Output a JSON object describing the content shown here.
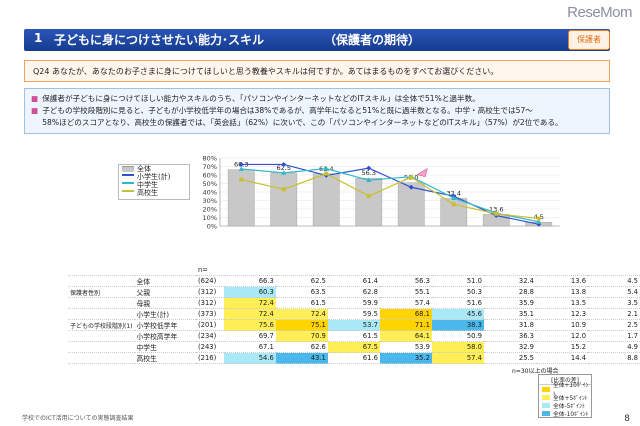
{
  "brand": "ReseMom",
  "title": {
    "num": "1",
    "text": "子どもに身につけさせたい能力･スキル",
    "sub": "（保護者の期待）",
    "badge": "保護者"
  },
  "question": "Q24  あなたが、あなたのお子さまに身につけてほしいと思う教養やスキルは何ですか。あてはまるものをすべてお選びください。",
  "summary": [
    "保護者が子どもに身につけてほしい能力やスキルのうち、「パソコンやインターネットなどのITスキル」は全体で51%と過半数。",
    "子どもの学校段階別に見ると、子どもが小学校低学年の場合は38%であるが、高学年になると51%と既に過半数となる。中学・高校生では57～",
    "58%ほどのスコアとなり、高校生の保護者では、「英会話」（62%）に次いで、この「パソコンやインターネットなどのITスキル」（57%）が2位である。"
  ],
  "chart_data": {
    "type": "bar",
    "categories": [
      "日本語の\n質読力",
      "計算能力",
      "英会話",
      "運動能力",
      "パソコンや\nインターネット\nなどの\nITスキル",
      "芸術的センス",
      "英語以外の\n外国語の会話",
      "その他"
    ],
    "ylim": [
      0,
      80
    ],
    "yticks": [
      "0%",
      "10%",
      "20%",
      "30%",
      "40%",
      "50%",
      "60%",
      "70%",
      "80%"
    ],
    "series": [
      {
        "name": "全体",
        "kind": "bar",
        "color": "#c8c8c8",
        "values": [
          66.3,
          62.5,
          61.4,
          56.3,
          51.0,
          32.4,
          13.6,
          4.5
        ],
        "labels": [
          "66.3",
          "62.5",
          "61.4",
          "56.3",
          "51.0",
          "32.4",
          "13.6",
          "4.5"
        ]
      },
      {
        "name": "小学生(計)",
        "kind": "line",
        "color": "#3050d0",
        "values": [
          72.4,
          72.4,
          59.5,
          68.1,
          45.6,
          35.1,
          12.3,
          2.1
        ]
      },
      {
        "name": "中学生",
        "kind": "line",
        "color": "#30b8c8",
        "values": [
          67.1,
          62.6,
          67.5,
          53.9,
          58.0,
          32.9,
          15.2,
          4.9
        ]
      },
      {
        "name": "高校生",
        "kind": "line",
        "color": "#c8c030",
        "values": [
          54.6,
          43.1,
          61.6,
          35.2,
          57.4,
          25.5,
          14.4,
          8.8
        ]
      }
    ]
  },
  "table": {
    "n_label": "n=",
    "rows": [
      {
        "group": "",
        "label": "全体",
        "n": "(624)",
        "vals": [
          "66.3",
          "62.5",
          "61.4",
          "56.3",
          "51.0",
          "32.4",
          "13.6",
          "4.5"
        ],
        "cls": [
          "",
          "",
          "",
          "",
          "",
          "",
          "",
          ""
        ]
      },
      {
        "group": "保護者性別",
        "label": "父親",
        "n": "(312)",
        "vals": [
          "60.3",
          "63.5",
          "62.8",
          "55.1",
          "50.3",
          "28.8",
          "13.8",
          "5.4"
        ],
        "cls": [
          "lo",
          "",
          "",
          "",
          "",
          "",
          "",
          ""
        ]
      },
      {
        "group": "",
        "label": "母親",
        "n": "(312)",
        "vals": [
          "72.4",
          "61.5",
          "59.9",
          "57.4",
          "51.6",
          "35.9",
          "13.5",
          "3.5"
        ],
        "cls": [
          "hi",
          "",
          "",
          "",
          "",
          "",
          "",
          ""
        ]
      },
      {
        "group": "",
        "label": "小学生(計)",
        "n": "(373)",
        "vals": [
          "72.4",
          "72.4",
          "59.5",
          "68.1",
          "45.6",
          "35.1",
          "12.3",
          "2.1"
        ],
        "cls": [
          "hi",
          "hi",
          "",
          "hi2",
          "lo",
          "",
          "",
          ""
        ]
      },
      {
        "group": "子どもの学校段階別(1)",
        "label": "小学校低学年",
        "n": "(201)",
        "vals": [
          "75.6",
          "75.1",
          "53.7",
          "71.1",
          "38.3",
          "31.8",
          "10.9",
          "2.5"
        ],
        "cls": [
          "hi",
          "hi2",
          "lo",
          "hi2",
          "lo2",
          "",
          "",
          ""
        ]
      },
      {
        "group": "",
        "label": "小学校高学年",
        "n": "(234)",
        "vals": [
          "69.7",
          "70.9",
          "61.5",
          "64.1",
          "50.9",
          "36.3",
          "12.0",
          "1.7"
        ],
        "cls": [
          "",
          "hi",
          "",
          "hi",
          "",
          "",
          "",
          ""
        ]
      },
      {
        "group": "",
        "label": "中学生",
        "n": "(243)",
        "vals": [
          "67.1",
          "62.6",
          "67.5",
          "53.9",
          "58.0",
          "32.9",
          "15.2",
          "4.9"
        ],
        "cls": [
          "",
          "",
          "hi",
          "",
          "hi",
          "",
          "",
          ""
        ]
      },
      {
        "group": "",
        "label": "高校生",
        "n": "(216)",
        "vals": [
          "54.6",
          "43.1",
          "61.6",
          "35.2",
          "57.4",
          "25.5",
          "14.4",
          "8.8"
        ],
        "cls": [
          "lo",
          "lo2",
          "",
          "lo2",
          "hi",
          "",
          "",
          ""
        ]
      }
    ]
  },
  "note": "n=30以上の場合",
  "key": {
    "title": "[比率の差]",
    "items": [
      {
        "label": "全体+10ﾎﾟｲﾝﾄ",
        "color": "#ffd400"
      },
      {
        "label": "全体+5ﾎﾟｲﾝﾄ",
        "color": "#ffee55"
      },
      {
        "label": "全体-5ﾎﾟｲﾝﾄ",
        "color": "#a9e8f7"
      },
      {
        "label": "全体-10ﾎﾟｲﾝﾄ",
        "color": "#4ab8ec"
      }
    ]
  },
  "footer": "学校でのICT活用についての実態調査結果",
  "page_num": "8"
}
